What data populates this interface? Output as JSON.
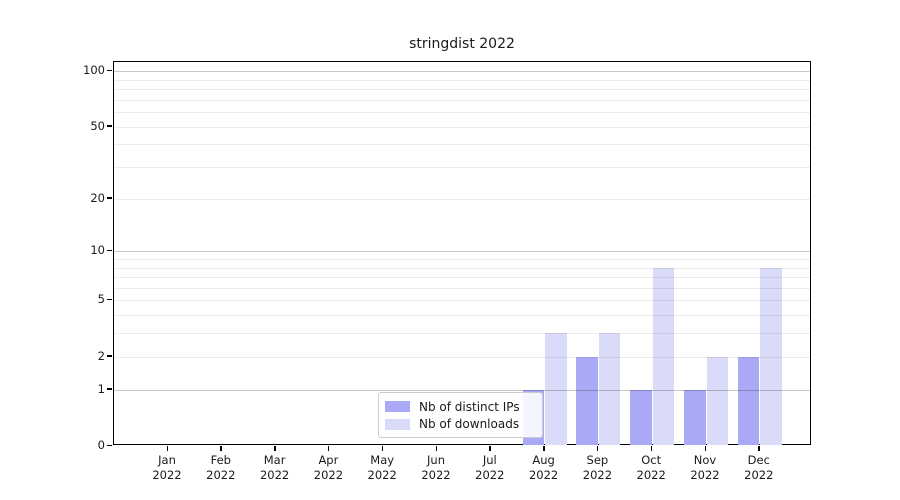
{
  "figure": {
    "background": "#ffffff"
  },
  "chart_data": {
    "type": "bar",
    "title": "stringdist 2022",
    "xlabel": "",
    "ylabel": "",
    "x_tick_months": [
      "Jan",
      "Feb",
      "Mar",
      "Apr",
      "May",
      "Jun",
      "Jul",
      "Aug",
      "Sep",
      "Oct",
      "Nov",
      "Dec"
    ],
    "x_tick_year": "2022",
    "series": [
      {
        "name": "Nb of distinct IPs",
        "color": "#a9a9f5",
        "values": [
          0,
          0,
          0,
          0,
          0,
          0,
          0,
          1,
          2,
          1,
          1,
          2
        ]
      },
      {
        "name": "Nb of downloads",
        "color": "#dadaf9",
        "values": [
          0,
          0,
          0,
          0,
          0,
          0,
          0,
          3,
          3,
          8,
          2,
          8
        ]
      }
    ],
    "yscale": "log1p",
    "ylim": [
      0,
      112
    ],
    "yticks": [
      0,
      1,
      2,
      5,
      10,
      20,
      50,
      100
    ],
    "grid": {
      "on": true,
      "minor_values": [
        2,
        3,
        4,
        5,
        6,
        7,
        8,
        9,
        20,
        30,
        40,
        50,
        60,
        70,
        80,
        90
      ],
      "major_values": [
        1,
        10,
        100
      ]
    },
    "legend": {
      "position": "lower center"
    }
  }
}
